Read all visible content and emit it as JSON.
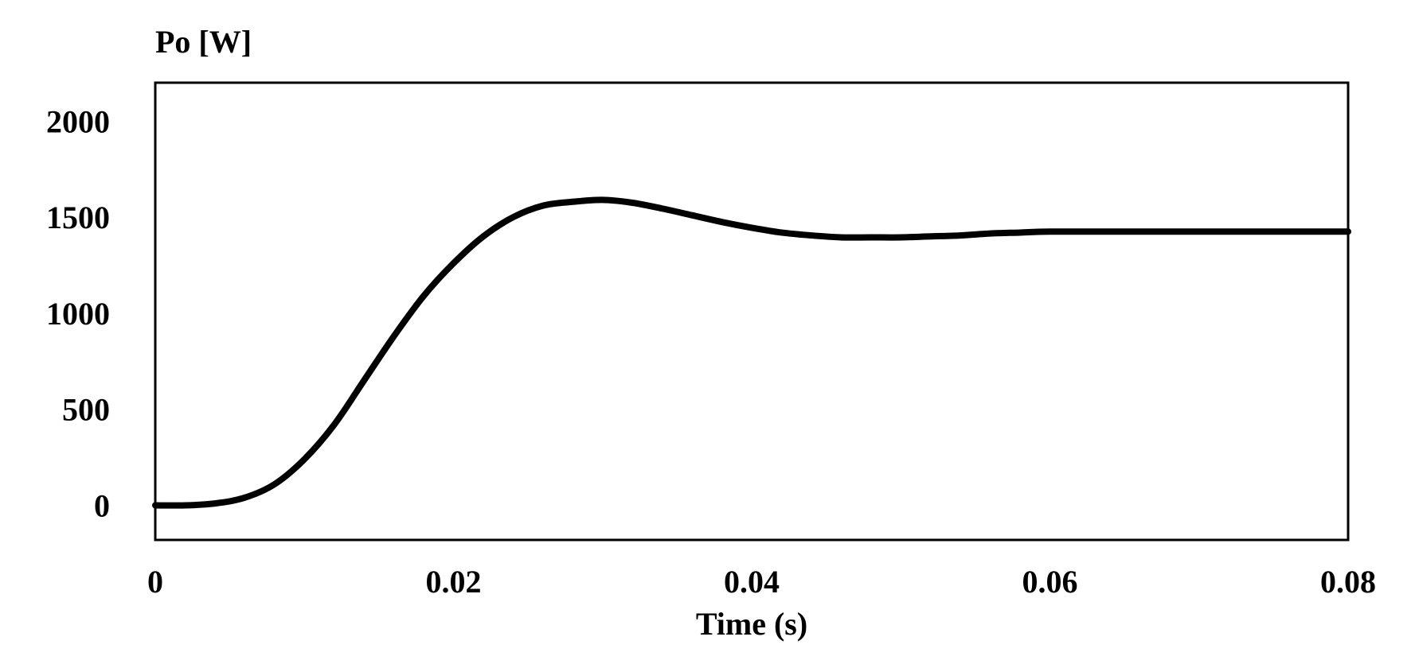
{
  "chart_data": {
    "type": "line",
    "title": "",
    "ylabel": "Po [W]",
    "xlabel": "Time (s)",
    "xlim": [
      0,
      0.08
    ],
    "ylim": [
      -180,
      2200
    ],
    "x_ticks": [
      0,
      0.02,
      0.04,
      0.06,
      0.08
    ],
    "x_tick_labels": [
      "0",
      "0.02",
      "0.04",
      "0.06",
      "0.08"
    ],
    "y_ticks": [
      0,
      500,
      1000,
      1500,
      2000
    ],
    "y_tick_labels": [
      "0",
      "500",
      "1000",
      "1500",
      "2000"
    ],
    "grid": false,
    "legend": "none",
    "line_color": "#000000",
    "series": [
      {
        "x": [
          0,
          0.002,
          0.004,
          0.006,
          0.008,
          0.01,
          0.012,
          0.014,
          0.016,
          0.018,
          0.02,
          0.022,
          0.024,
          0.026,
          0.028,
          0.03,
          0.032,
          0.034,
          0.036,
          0.038,
          0.04,
          0.042,
          0.044,
          0.046,
          0.048,
          0.05,
          0.052,
          0.054,
          0.056,
          0.058,
          0.06,
          0.065,
          0.07,
          0.075,
          0.08
        ],
        "y": [
          0,
          0,
          10,
          40,
          110,
          240,
          420,
          650,
          880,
          1090,
          1260,
          1400,
          1500,
          1560,
          1580,
          1590,
          1575,
          1545,
          1510,
          1475,
          1445,
          1420,
          1405,
          1395,
          1395,
          1395,
          1400,
          1405,
          1415,
          1420,
          1425,
          1425,
          1425,
          1425,
          1425
        ]
      }
    ]
  }
}
